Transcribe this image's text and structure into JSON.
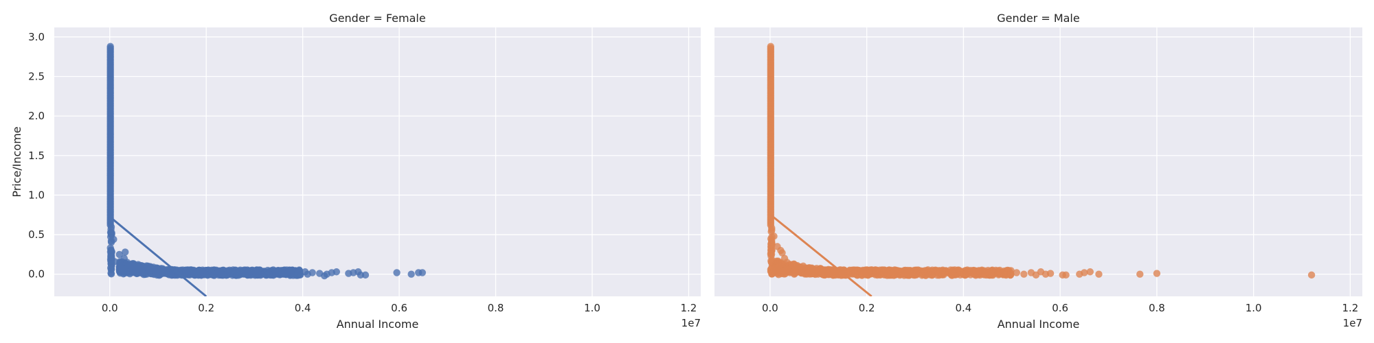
{
  "chart_data": {
    "type": "scatter",
    "style": {
      "background": "#eaeaf2",
      "grid_color": "#ffffff",
      "grid": true,
      "palette": [
        "#4c72b0",
        "#dd8452"
      ]
    },
    "y_axis": {
      "label": "Price/Income",
      "ylim": [
        -0.28,
        3.12
      ],
      "ticks": [
        0.0,
        0.5,
        1.0,
        1.5,
        2.0,
        2.5,
        3.0
      ],
      "tick_labels": [
        "0.0",
        "0.5",
        "1.0",
        "1.5",
        "2.0",
        "2.5",
        "3.0"
      ]
    },
    "x_axis": {
      "label": "Annual Income",
      "xlim": [
        -1150000,
        12250000
      ],
      "ticks": [
        0,
        2000000,
        4000000,
        6000000,
        8000000,
        10000000,
        12000000
      ],
      "tick_labels": [
        "0.0",
        "0.2",
        "0.4",
        "0.6",
        "0.8",
        "1.0",
        "1.2"
      ],
      "offset_label": "1e7"
    },
    "panels": [
      {
        "title": "Gender = Female",
        "color": "#4c72b0",
        "regression_line": {
          "x": [
            13000,
            2000000
          ],
          "y": [
            0.72,
            -0.28
          ]
        },
        "vertical_column": {
          "x": 13000,
          "y_min": 0.62,
          "y_max": 2.9
        },
        "dense_band": {
          "x_min": 200000,
          "x_max": 3950000,
          "y_center": 0.02,
          "y_spread": 0.035
        },
        "points": [
          {
            "x": 80000,
            "y": 0.44
          },
          {
            "x": 100000,
            "y": 0.16
          },
          {
            "x": 200000,
            "y": 0.25
          },
          {
            "x": 320000,
            "y": 0.28
          },
          {
            "x": 300000,
            "y": 0.2
          },
          {
            "x": 360000,
            "y": 0.15
          },
          {
            "x": 420000,
            "y": 0.12
          },
          {
            "x": 500000,
            "y": 0.1
          },
          {
            "x": 600000,
            "y": 0.09
          },
          {
            "x": 3000000,
            "y": 0.03
          },
          {
            "x": 3300000,
            "y": 0.01
          },
          {
            "x": 3600000,
            "y": 0.0
          },
          {
            "x": 3900000,
            "y": 0.02
          },
          {
            "x": 4050000,
            "y": 0.03
          },
          {
            "x": 4100000,
            "y": 0.0
          },
          {
            "x": 4200000,
            "y": 0.02
          },
          {
            "x": 4350000,
            "y": 0.01
          },
          {
            "x": 4450000,
            "y": -0.02
          },
          {
            "x": 4500000,
            "y": 0.0
          },
          {
            "x": 4600000,
            "y": 0.02
          },
          {
            "x": 4700000,
            "y": 0.03
          },
          {
            "x": 4950000,
            "y": 0.01
          },
          {
            "x": 5050000,
            "y": 0.02
          },
          {
            "x": 5150000,
            "y": 0.03
          },
          {
            "x": 5200000,
            "y": -0.01
          },
          {
            "x": 5300000,
            "y": -0.01
          },
          {
            "x": 5950000,
            "y": 0.02
          },
          {
            "x": 6250000,
            "y": 0.0
          },
          {
            "x": 6400000,
            "y": 0.02
          },
          {
            "x": 6480000,
            "y": 0.02
          }
        ]
      },
      {
        "title": "Gender = Male",
        "color": "#dd8452",
        "regression_line": {
          "x": [
            13000,
            2100000
          ],
          "y": [
            0.75,
            -0.28
          ]
        },
        "vertical_column": {
          "x": 13000,
          "y_min": 0.62,
          "y_max": 2.9
        },
        "dense_band": {
          "x_min": 100000,
          "x_max": 5000000,
          "y_center": 0.02,
          "y_spread": 0.035
        },
        "points": [
          {
            "x": 20000,
            "y": 0.17
          },
          {
            "x": 80000,
            "y": 0.48
          },
          {
            "x": 150000,
            "y": 0.35
          },
          {
            "x": 220000,
            "y": 0.3
          },
          {
            "x": 250000,
            "y": 0.27
          },
          {
            "x": 300000,
            "y": 0.2
          },
          {
            "x": 350000,
            "y": 0.15
          },
          {
            "x": 450000,
            "y": 0.12
          },
          {
            "x": 550000,
            "y": 0.1
          },
          {
            "x": 5100000,
            "y": 0.02
          },
          {
            "x": 5250000,
            "y": 0.0
          },
          {
            "x": 5400000,
            "y": 0.02
          },
          {
            "x": 5500000,
            "y": -0.01
          },
          {
            "x": 5600000,
            "y": 0.03
          },
          {
            "x": 5700000,
            "y": 0.0
          },
          {
            "x": 5800000,
            "y": 0.01
          },
          {
            "x": 6050000,
            "y": -0.01
          },
          {
            "x": 6120000,
            "y": -0.01
          },
          {
            "x": 6400000,
            "y": 0.0
          },
          {
            "x": 6500000,
            "y": 0.02
          },
          {
            "x": 6620000,
            "y": 0.03
          },
          {
            "x": 6800000,
            "y": 0.0
          },
          {
            "x": 7650000,
            "y": 0.0
          },
          {
            "x": 8000000,
            "y": 0.01
          },
          {
            "x": 11200000,
            "y": -0.01
          }
        ]
      }
    ]
  }
}
